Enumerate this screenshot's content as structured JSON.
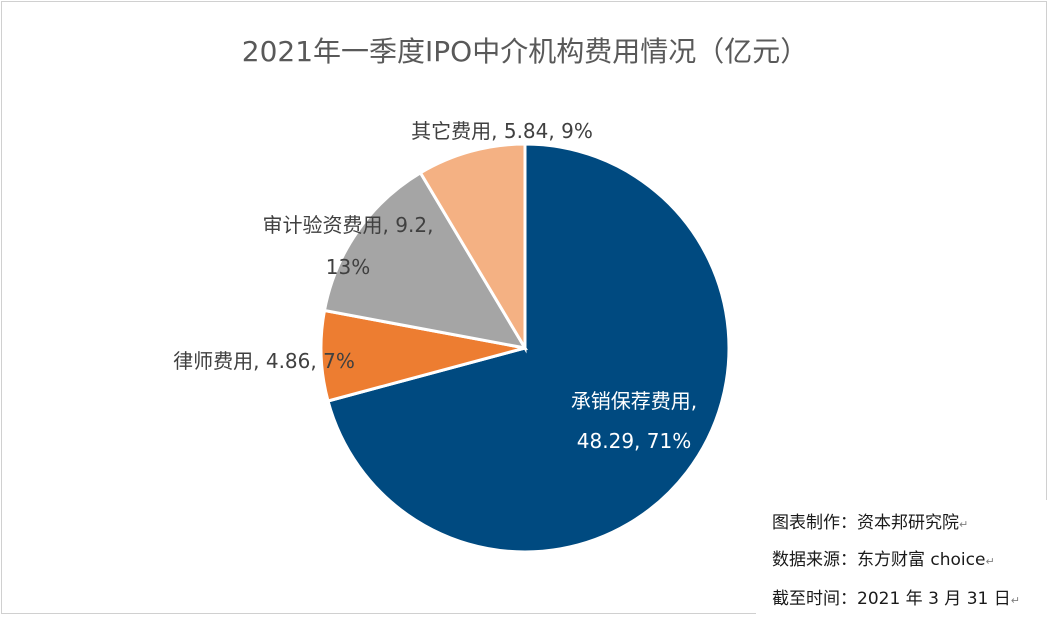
{
  "chart_data": {
    "type": "pie",
    "title": "2021年一季度IPO中介机构费用情况（亿元）",
    "slices": [
      {
        "name": "承销保荐费用",
        "value": 48.29,
        "percent": "71%",
        "color": "#004a80",
        "label_lines": [
          "承销保荐费用,",
          "48.29, 71%"
        ],
        "label_inside": true
      },
      {
        "name": "律师费用",
        "value": 4.86,
        "percent": "7%",
        "color": "#ed7d31",
        "label_lines": [
          "律师费用, 4.86, 7%"
        ],
        "label_inside": false
      },
      {
        "name": "审计验资费用",
        "value": 9.2,
        "percent": "13%",
        "color": "#a5a5a5",
        "label_lines": [
          "审计验资费用, 9.2,",
          "13%"
        ],
        "label_inside": false
      },
      {
        "name": "其它费用",
        "value": 5.84,
        "percent": "9%",
        "color": "#f4b183",
        "label_lines": [
          "其它费用, 5.84, 9%"
        ],
        "label_inside": false
      }
    ]
  },
  "notes": {
    "maker": "图表制作：资本邦研究院",
    "source": "数据来源：东方财富 choice",
    "date": "截至时间：2021 年 3 月 31 日"
  }
}
